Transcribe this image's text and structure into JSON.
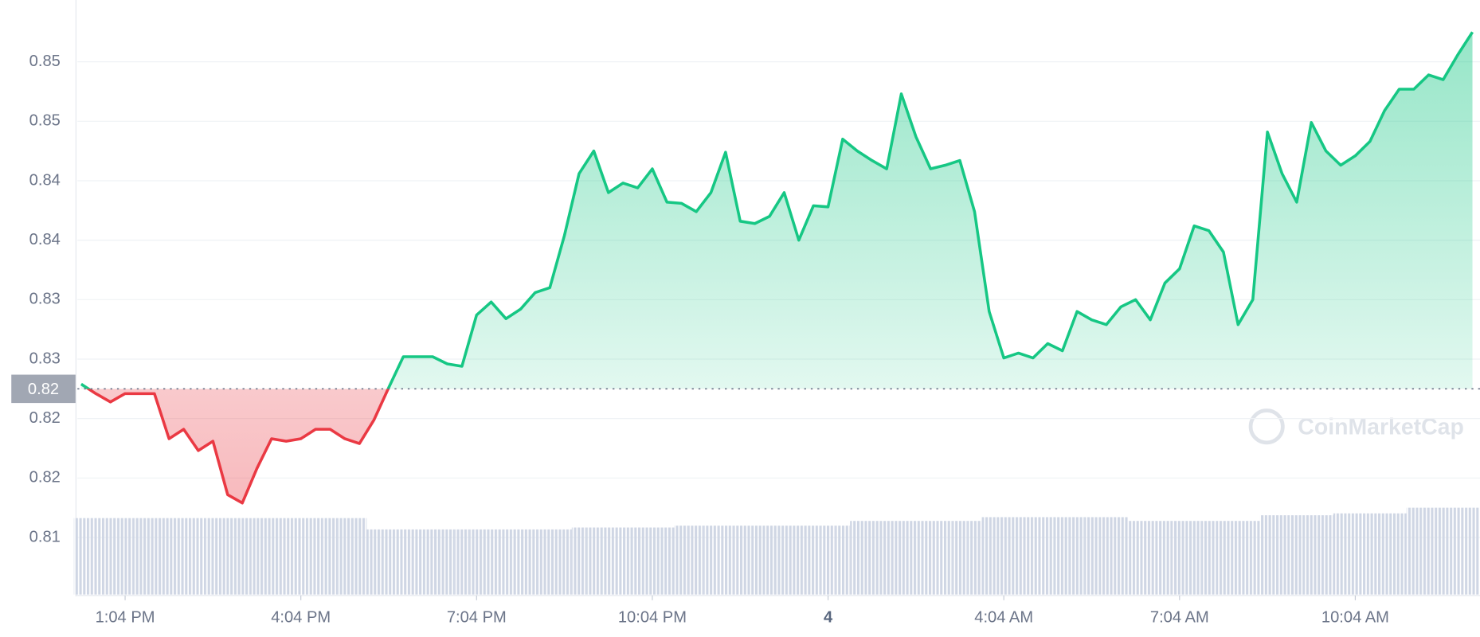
{
  "chart_data": {
    "type": "line",
    "categories": [
      null,
      null,
      null,
      "1:04 PM",
      null,
      null,
      null,
      null,
      null,
      null,
      null,
      null,
      null,
      null,
      null,
      "4:04 PM",
      null,
      null,
      null,
      null,
      null,
      null,
      null,
      null,
      null,
      null,
      null,
      "7:04 PM",
      null,
      null,
      null,
      null,
      null,
      null,
      null,
      null,
      null,
      null,
      null,
      "10:04 PM",
      null,
      null,
      null,
      null,
      null,
      null,
      null,
      null,
      null,
      null,
      null,
      "4",
      null,
      null,
      null,
      null,
      null,
      null,
      null,
      null,
      null,
      null,
      null,
      "4:04 AM",
      null,
      null,
      null,
      null,
      null,
      null,
      null,
      null,
      null,
      null,
      null,
      "7:04 AM",
      null,
      null,
      null,
      null,
      null,
      null,
      null,
      null,
      null,
      null,
      null,
      "10:04 AM",
      null,
      null,
      null,
      null,
      null,
      null,
      null,
      null
    ],
    "values": [
      0.8229,
      0.8221,
      0.8214,
      0.8221,
      0.8221,
      0.8221,
      0.8183,
      0.8191,
      0.8173,
      0.8181,
      0.8136,
      0.8129,
      0.8158,
      0.8183,
      0.8181,
      0.8183,
      0.8191,
      0.8191,
      0.8183,
      0.8179,
      0.8199,
      0.8226,
      0.8252,
      0.8252,
      0.8252,
      0.8246,
      0.8244,
      0.8287,
      0.8298,
      0.8284,
      0.8292,
      0.8306,
      0.831,
      0.8354,
      0.8406,
      0.8425,
      0.839,
      0.8398,
      0.8394,
      0.841,
      0.8382,
      0.8381,
      0.8374,
      0.839,
      0.8424,
      0.8366,
      0.8364,
      0.837,
      0.839,
      0.835,
      0.8379,
      0.8378,
      0.8435,
      0.8425,
      0.8417,
      0.841,
      0.8473,
      0.8437,
      0.841,
      0.8413,
      0.8417,
      0.8374,
      0.829,
      0.8251,
      0.8255,
      0.8251,
      0.8263,
      0.8257,
      0.829,
      0.8283,
      0.8279,
      0.8294,
      0.83,
      0.8283,
      0.8314,
      0.8326,
      0.8362,
      0.8358,
      0.834,
      0.8279,
      0.83,
      0.8441,
      0.8406,
      0.8382,
      0.8449,
      0.8425,
      0.8413,
      0.8421,
      0.8433,
      0.8459,
      0.8477,
      0.8477,
      0.8489,
      0.8485,
      0.8506,
      0.8525
    ],
    "volume": [
      81,
      81,
      81,
      81,
      81,
      81,
      81,
      81,
      81,
      81,
      81,
      81,
      81,
      81,
      81,
      81,
      81,
      81,
      81,
      81,
      69,
      69,
      69,
      69,
      69,
      69,
      69,
      69,
      69,
      69,
      69,
      69,
      69,
      69,
      71,
      71,
      71,
      71,
      71,
      71,
      71,
      73,
      73,
      73,
      73,
      73,
      73,
      73,
      73,
      73,
      73,
      73,
      73,
      78,
      78,
      78,
      78,
      78,
      78,
      78,
      78,
      78,
      82,
      82,
      82,
      82,
      82,
      82,
      82,
      82,
      82,
      82,
      78,
      78,
      78,
      78,
      78,
      78,
      78,
      78,
      78,
      84,
      84,
      84,
      84,
      84,
      86,
      86,
      86,
      86,
      86,
      92,
      92,
      92,
      92,
      92
    ],
    "color_up": "#16c784",
    "color_down": "#ea3943",
    "volume_color": "#cfd6e4",
    "baseline": {
      "value": 0.8225,
      "label": "0.82"
    },
    "ylim": [
      0.8052,
      0.8552
    ],
    "yticks": [
      0.81,
      {
        "value": 0.815,
        "label": "0.82"
      },
      0.82,
      {
        "value": 0.825,
        "label": "0.83"
      },
      0.83,
      {
        "value": 0.835,
        "label": "0.84"
      },
      0.84,
      {
        "value": 0.845,
        "label": "0.85"
      },
      0.85
    ],
    "grid": true,
    "watermark": "CoinMarketCap"
  }
}
